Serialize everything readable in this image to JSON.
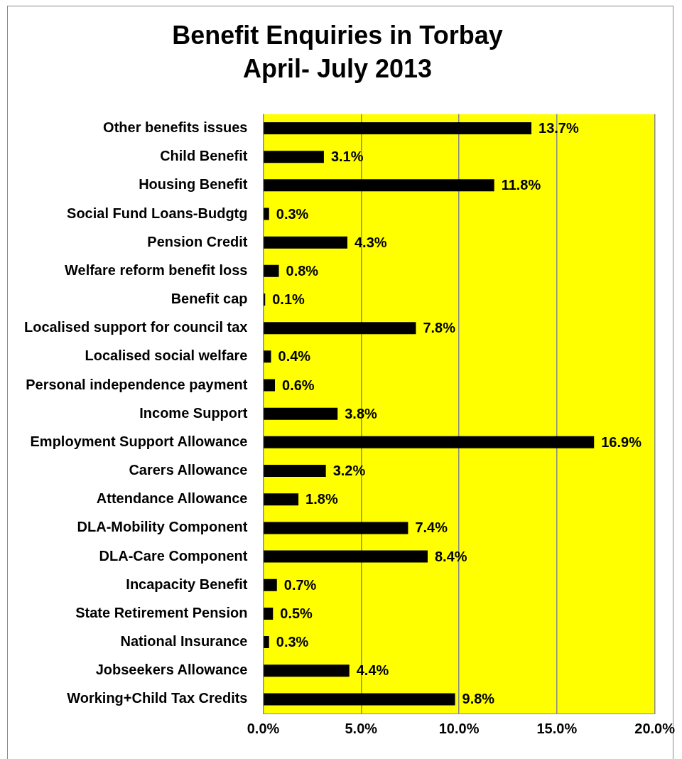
{
  "chart_data": {
    "type": "bar",
    "orientation": "horizontal",
    "title": "Benefit Enquiries in Torbay",
    "subtitle": "April- July 2013",
    "categories": [
      "Other benefits issues",
      "Child Benefit",
      "Housing Benefit",
      "Social Fund Loans-Budgtg",
      "Pension Credit",
      "Welfare reform benefit loss",
      "Benefit cap",
      "Localised support for council tax",
      "Localised social welfare",
      "Personal independence payment",
      "Income Support",
      "Employment Support Allowance",
      "Carers Allowance",
      "Attendance Allowance",
      "DLA-Mobility Component",
      "DLA-Care Component",
      "Incapacity Benefit",
      "State Retirement Pension",
      "National Insurance",
      "Jobseekers Allowance",
      "Working+Child Tax Credits"
    ],
    "values": [
      13.7,
      3.1,
      11.8,
      0.3,
      4.3,
      0.8,
      0.1,
      7.8,
      0.4,
      0.6,
      3.8,
      16.9,
      3.2,
      1.8,
      7.4,
      8.4,
      0.7,
      0.5,
      0.3,
      4.4,
      9.8
    ],
    "value_labels": [
      "13.7%",
      "3.1%",
      "11.8%",
      "0.3%",
      "4.3%",
      "0.8%",
      "0.1%",
      "7.8%",
      "0.4%",
      "0.6%",
      "3.8%",
      "16.9%",
      "3.2%",
      "1.8%",
      "7.4%",
      "8.4%",
      "0.7%",
      "0.5%",
      "0.3%",
      "4.4%",
      "9.8%"
    ],
    "color": "#000000",
    "xlim": [
      0,
      20
    ],
    "xticks": [
      {
        "value": 0,
        "label": "0.0%"
      },
      {
        "value": 5,
        "label": "5.0%"
      },
      {
        "value": 10,
        "label": "10.0%"
      },
      {
        "value": 15,
        "label": "15.0%"
      },
      {
        "value": 20,
        "label": "20.0%"
      }
    ],
    "grid": "x",
    "legend": false
  }
}
